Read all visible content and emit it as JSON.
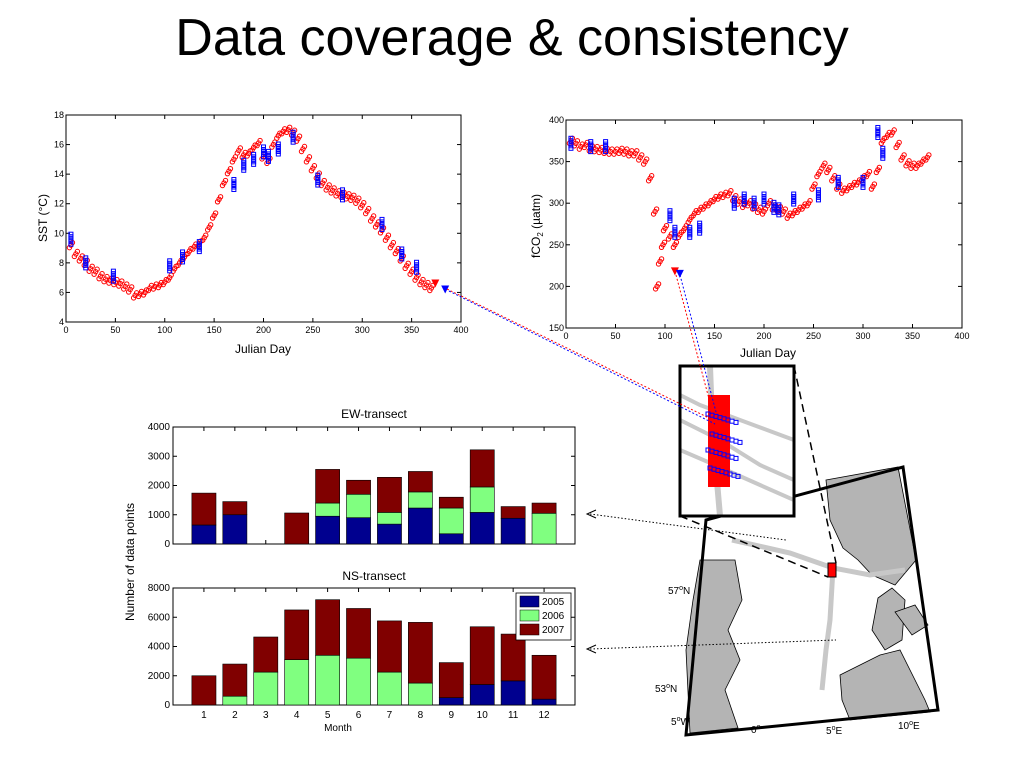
{
  "title": "Data coverage & consistency",
  "colors": {
    "red": "#ff0000",
    "blue": "#0000ff",
    "navy": "#00008f",
    "green": "#80ff80",
    "maroon": "#800000",
    "track": "#c8c8c8",
    "land": "#b4b4b4"
  },
  "chart_data": [
    {
      "id": "sst",
      "type": "scatter",
      "title": "",
      "xlabel": "Julian Day",
      "ylabel": "SST (°C)",
      "xlim": [
        0,
        400
      ],
      "ylim": [
        4,
        18
      ],
      "xticks": [
        0,
        50,
        100,
        150,
        200,
        250,
        300,
        350,
        400
      ],
      "yticks": [
        4,
        6,
        8,
        10,
        12,
        14,
        16,
        18
      ],
      "series": [
        {
          "color": "#ff0000",
          "marker": "circle",
          "x": [
            5,
            10,
            15,
            20,
            25,
            30,
            35,
            40,
            45,
            50,
            55,
            60,
            65,
            70,
            75,
            80,
            85,
            90,
            95,
            100,
            105,
            110,
            115,
            120,
            125,
            130,
            135,
            140,
            145,
            150,
            155,
            160,
            165,
            170,
            175,
            180,
            185,
            190,
            195,
            200,
            205,
            210,
            215,
            220,
            225,
            230,
            235,
            240,
            245,
            250,
            255,
            260,
            265,
            270,
            275,
            280,
            285,
            290,
            295,
            300,
            305,
            310,
            315,
            320,
            325,
            330,
            335,
            340,
            345,
            350,
            355,
            360,
            365,
            370
          ],
          "y": [
            9.2,
            8.6,
            8.3,
            8.0,
            7.6,
            7.4,
            7.1,
            6.9,
            6.8,
            6.7,
            6.6,
            6.4,
            6.2,
            5.8,
            5.9,
            6.0,
            6.3,
            6.4,
            6.5,
            6.7,
            7.0,
            7.6,
            8.0,
            8.4,
            8.8,
            9.1,
            9.3,
            9.7,
            10.4,
            11.2,
            12.3,
            13.4,
            14.2,
            15.0,
            15.6,
            15.3,
            15.4,
            15.8,
            16.1,
            15.2,
            14.9,
            16.0,
            16.6,
            16.9,
            17.0,
            16.8,
            16.4,
            15.7,
            15.0,
            14.4,
            13.9,
            13.4,
            13.1,
            12.9,
            12.7,
            12.6,
            12.5,
            12.4,
            12.2,
            11.9,
            11.5,
            11.0,
            10.6,
            10.2,
            9.7,
            9.2,
            8.8,
            8.3,
            7.8,
            7.4,
            7.0,
            6.7,
            6.5,
            6.3
          ]
        },
        {
          "color": "#0000ff",
          "marker": "square",
          "x": [
            5,
            20,
            48,
            105,
            118,
            135,
            170,
            180,
            190,
            200,
            205,
            215,
            230,
            255,
            280,
            320,
            340,
            355
          ],
          "y": [
            9.6,
            8.0,
            7.1,
            7.8,
            8.4,
            9.1,
            13.3,
            14.6,
            15.0,
            15.5,
            15.2,
            15.7,
            16.5,
            13.6,
            12.6,
            10.6,
            8.6,
            7.7
          ]
        }
      ],
      "arrow_points": [
        {
          "color": "#ff0000",
          "x": 374,
          "y": 6.6
        },
        {
          "color": "#0000ff",
          "x": 384,
          "y": 6.2
        }
      ]
    },
    {
      "id": "fco2",
      "type": "scatter",
      "title": "",
      "xlabel": "Julian Day",
      "ylabel": "fCO2 (µatm)",
      "ylabel_main": "fCO",
      "ylabel_sub": "2",
      "ylabel_unit": " (µatm)",
      "xlim": [
        0,
        400
      ],
      "ylim": [
        150,
        400
      ],
      "xticks": [
        0,
        50,
        100,
        150,
        200,
        250,
        300,
        350,
        400
      ],
      "yticks": [
        150,
        200,
        250,
        300,
        350,
        400
      ],
      "series": [
        {
          "color": "#ff0000",
          "marker": "circle",
          "x": [
            5,
            10,
            15,
            20,
            25,
            30,
            35,
            40,
            45,
            50,
            55,
            60,
            65,
            70,
            75,
            80,
            85,
            90,
            92,
            95,
            98,
            100,
            105,
            110,
            115,
            120,
            125,
            130,
            135,
            140,
            145,
            150,
            155,
            160,
            165,
            170,
            175,
            180,
            185,
            190,
            195,
            200,
            205,
            210,
            215,
            220,
            225,
            230,
            235,
            240,
            245,
            250,
            255,
            260,
            265,
            270,
            275,
            280,
            285,
            290,
            295,
            300,
            305,
            310,
            315,
            320,
            325,
            330,
            335,
            340,
            345,
            350,
            355,
            360,
            365
          ],
          "y": [
            375,
            372,
            368,
            370,
            366,
            365,
            364,
            363,
            362,
            362,
            363,
            362,
            360,
            360,
            355,
            350,
            330,
            290,
            200,
            230,
            250,
            270,
            260,
            250,
            262,
            270,
            280,
            288,
            292,
            296,
            300,
            305,
            308,
            310,
            312,
            306,
            302,
            298,
            300,
            296,
            292,
            290,
            300,
            295,
            293,
            290,
            285,
            288,
            292,
            296,
            300,
            320,
            335,
            345,
            340,
            330,
            320,
            315,
            318,
            322,
            325,
            330,
            335,
            320,
            340,
            375,
            382,
            385,
            370,
            355,
            348,
            345,
            345,
            350,
            355
          ]
        },
        {
          "color": "#0000ff",
          "marker": "square",
          "x": [
            5,
            25,
            40,
            105,
            110,
            125,
            135,
            170,
            180,
            190,
            200,
            210,
            215,
            230,
            255,
            275,
            300,
            315,
            320
          ],
          "y": [
            372,
            368,
            368,
            285,
            265,
            265,
            270,
            300,
            305,
            300,
            305,
            295,
            292,
            305,
            310,
            325,
            325,
            385,
            360
          ]
        }
      ],
      "arrow_points": [
        {
          "color": "#ff0000",
          "x": 110,
          "y": 218
        },
        {
          "color": "#0000ff",
          "x": 115,
          "y": 215
        }
      ]
    },
    {
      "id": "ew",
      "type": "bar",
      "stacked": true,
      "title": "EW-transect",
      "xlabel": "",
      "ylabel": "",
      "categories": [
        "1",
        "2",
        "3",
        "4",
        "5",
        "6",
        "7",
        "8",
        "9",
        "10",
        "11",
        "12"
      ],
      "ylim": [
        0,
        4000
      ],
      "yticks": [
        0,
        1000,
        2000,
        3000,
        4000
      ],
      "series": [
        {
          "name": "2005",
          "color": "#00008f",
          "values": [
            650,
            1000,
            0,
            0,
            950,
            900,
            680,
            1230,
            350,
            1080,
            880,
            0
          ]
        },
        {
          "name": "2006",
          "color": "#80ff80",
          "values": [
            0,
            0,
            0,
            0,
            450,
            800,
            400,
            550,
            880,
            870,
            0,
            1050
          ]
        },
        {
          "name": "2007",
          "color": "#800000",
          "values": [
            1090,
            450,
            0,
            1060,
            1150,
            480,
            1200,
            700,
            370,
            1270,
            400,
            350
          ]
        }
      ]
    },
    {
      "id": "ns",
      "type": "bar",
      "stacked": true,
      "title": "NS-transect",
      "xlabel": "Month",
      "ylabel": "",
      "categories": [
        "1",
        "2",
        "3",
        "4",
        "5",
        "6",
        "7",
        "8",
        "9",
        "10",
        "11",
        "12"
      ],
      "ylim": [
        0,
        8000
      ],
      "yticks": [
        0,
        2000,
        4000,
        6000,
        8000
      ],
      "series": [
        {
          "name": "2005",
          "color": "#00008f",
          "values": [
            0,
            0,
            0,
            0,
            0,
            0,
            0,
            0,
            500,
            1400,
            1650,
            400
          ]
        },
        {
          "name": "2006",
          "color": "#80ff80",
          "values": [
            0,
            600,
            2250,
            3100,
            3400,
            3200,
            2250,
            1500,
            0,
            0,
            0,
            0
          ]
        },
        {
          "name": "2007",
          "color": "#800000",
          "values": [
            2000,
            2200,
            2400,
            3400,
            3800,
            3400,
            3500,
            4150,
            2400,
            3950,
            3200,
            3000
          ]
        }
      ],
      "legend": {
        "placement": "top-right",
        "entries": [
          "2005",
          "2006",
          "2007"
        ]
      }
    }
  ],
  "shared_ylabel": "Number of data points",
  "map": {
    "labels": {
      "lat57": "57oN",
      "lat53": "53oN",
      "lon5w": "5oW",
      "lon0": "0o",
      "lon5e": "5oE",
      "lon10e": "10oE"
    },
    "lat57_num": "57",
    "lat53_num": "53",
    "lon5w_num": "5",
    "lon0_num": "0",
    "lon5e_num": "5",
    "lon10e_num": "10",
    "deg": "o",
    "N": "N",
    "W": "W",
    "E": "E"
  }
}
